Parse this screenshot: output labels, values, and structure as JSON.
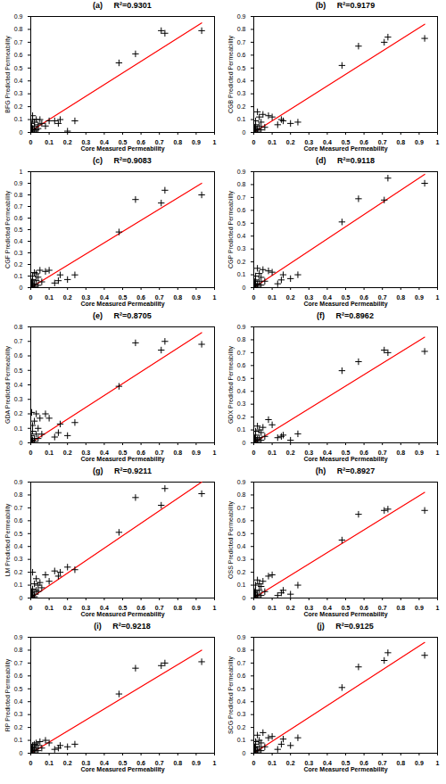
{
  "chart_data": [
    {
      "type": "scatter",
      "title": "(a)     R²=0.9301",
      "xlabel": "Core Measured Permeability",
      "ylabel": "BFG Predicted Permeability",
      "color": "#000000",
      "marker": "plus",
      "xlim": [
        0,
        1
      ],
      "xticks": [
        0,
        0.1,
        0.2,
        0.3,
        0.4,
        0.5,
        0.6,
        0.7,
        0.8,
        0.9,
        1
      ],
      "ylim": [
        0,
        0.9
      ],
      "yticks": [
        0,
        0.1,
        0.2,
        0.3,
        0.4,
        0.5,
        0.6,
        0.7,
        0.8,
        0.9
      ],
      "x": [
        0.93,
        0.73,
        0.71,
        0.57,
        0.48,
        0.24,
        0.2,
        0.16,
        0.15,
        0.13,
        0.1,
        0.08,
        0.06,
        0.05,
        0.04,
        0.04,
        0.03,
        0.03,
        0.02,
        0.02,
        0.02,
        0.01,
        0.01,
        0.01,
        0.01,
        0.005,
        0.005,
        0.003,
        0.002,
        0.001
      ],
      "y": [
        0.79,
        0.77,
        0.79,
        0.61,
        0.54,
        0.09,
        0.01,
        0.1,
        0.07,
        0.09,
        0.09,
        0.05,
        0.07,
        0.1,
        0.03,
        0.06,
        0.1,
        0.02,
        0.05,
        0.08,
        0.01,
        0.1,
        0.03,
        0.02,
        0.13,
        0.04,
        0.01,
        0.07,
        0.02,
        0
      ],
      "line": {
        "x": [
          0,
          0.93
        ],
        "y": [
          0.01,
          0.85
        ],
        "color": "#ff0000"
      }
    },
    {
      "type": "scatter",
      "title": "(b)     R²=0.9179",
      "xlabel": "Core Measured Permeability",
      "ylabel": "CGB Predicted Permeability",
      "color": "#000000",
      "marker": "plus",
      "xlim": [
        0,
        1
      ],
      "xticks": [
        0,
        0.1,
        0.2,
        0.3,
        0.4,
        0.5,
        0.6,
        0.7,
        0.8,
        0.9,
        1
      ],
      "ylim": [
        0,
        0.9
      ],
      "yticks": [
        0,
        0.1,
        0.2,
        0.3,
        0.4,
        0.5,
        0.6,
        0.7,
        0.8,
        0.9
      ],
      "x": [
        0.93,
        0.73,
        0.71,
        0.57,
        0.48,
        0.24,
        0.2,
        0.16,
        0.15,
        0.13,
        0.1,
        0.08,
        0.06,
        0.05,
        0.04,
        0.04,
        0.03,
        0.03,
        0.02,
        0.02,
        0.02,
        0.01,
        0.01,
        0.01,
        0.01,
        0.005,
        0.005,
        0.003,
        0.002,
        0.001
      ],
      "y": [
        0.73,
        0.74,
        0.7,
        0.67,
        0.52,
        0.08,
        0.07,
        0.09,
        0.1,
        0.06,
        0.12,
        0.13,
        0.04,
        0.14,
        0.02,
        0.08,
        0.05,
        0.12,
        0.03,
        0.16,
        0.01,
        0.06,
        0.02,
        0.09,
        0,
        0.03,
        0.01,
        0.04,
        0.02,
        0
      ],
      "line": {
        "x": [
          0,
          0.93
        ],
        "y": [
          0,
          0.84
        ],
        "color": "#ff0000"
      }
    },
    {
      "type": "scatter",
      "title": "(c)     R²=0.9083",
      "xlabel": "Core Measured Permeability",
      "ylabel": "CGF Predicted Permeability",
      "color": "#000000",
      "marker": "plus",
      "xlim": [
        0,
        1
      ],
      "xticks": [
        0,
        0.1,
        0.2,
        0.3,
        0.4,
        0.5,
        0.6,
        0.7,
        0.8,
        0.9,
        1
      ],
      "ylim": [
        0,
        1
      ],
      "yticks": [
        0,
        0.1,
        0.2,
        0.3,
        0.4,
        0.5,
        0.6,
        0.7,
        0.8,
        0.9,
        1
      ],
      "x": [
        0.93,
        0.73,
        0.71,
        0.57,
        0.48,
        0.24,
        0.2,
        0.16,
        0.15,
        0.13,
        0.1,
        0.08,
        0.06,
        0.05,
        0.04,
        0.04,
        0.03,
        0.03,
        0.02,
        0.02,
        0.02,
        0.01,
        0.01,
        0.01,
        0.01,
        0.005,
        0.005,
        0.003,
        0.002,
        0.001
      ],
      "y": [
        0.8,
        0.84,
        0.73,
        0.76,
        0.48,
        0.11,
        0.07,
        0.11,
        0.06,
        0.04,
        0.15,
        0.14,
        0.05,
        0.15,
        0.02,
        0.09,
        0.06,
        0.12,
        0.03,
        0.13,
        0.01,
        0.07,
        0.02,
        0.1,
        0,
        0.04,
        0.01,
        0.05,
        0.02,
        0
      ],
      "line": {
        "x": [
          0,
          0.93
        ],
        "y": [
          0,
          0.9
        ],
        "color": "#ff0000"
      }
    },
    {
      "type": "scatter",
      "title": "(d)     R²=0.9118",
      "xlabel": "Core Measured Permeability",
      "ylabel": "CGP Predicted Permeability",
      "color": "#000000",
      "marker": "plus",
      "xlim": [
        0,
        1
      ],
      "xticks": [
        0,
        0.1,
        0.2,
        0.3,
        0.4,
        0.5,
        0.6,
        0.7,
        0.8,
        0.9,
        1
      ],
      "ylim": [
        0,
        0.9
      ],
      "yticks": [
        0,
        0.1,
        0.2,
        0.3,
        0.4,
        0.5,
        0.6,
        0.7,
        0.8,
        0.9
      ],
      "x": [
        0.93,
        0.73,
        0.71,
        0.57,
        0.48,
        0.24,
        0.2,
        0.16,
        0.15,
        0.13,
        0.1,
        0.08,
        0.06,
        0.05,
        0.04,
        0.04,
        0.03,
        0.03,
        0.02,
        0.02,
        0.02,
        0.01,
        0.01,
        0.01,
        0.01,
        0.005,
        0.005,
        0.003,
        0.002,
        0.001
      ],
      "y": [
        0.81,
        0.85,
        0.68,
        0.69,
        0.51,
        0.1,
        0.07,
        0.1,
        0.06,
        0.03,
        0.12,
        0.13,
        0.05,
        0.14,
        0.02,
        0.08,
        0.05,
        0.11,
        0.03,
        0.15,
        0.01,
        0.06,
        0.02,
        0.09,
        0,
        0.03,
        0.01,
        0.05,
        0.02,
        0
      ],
      "line": {
        "x": [
          0,
          0.93
        ],
        "y": [
          0,
          0.88
        ],
        "color": "#ff0000"
      }
    },
    {
      "type": "scatter",
      "title": "(e)     R²=0.8705",
      "xlabel": "Core Measured Permeability",
      "ylabel": "GDA Predicted Permeability",
      "color": "#000000",
      "marker": "plus",
      "xlim": [
        0,
        1
      ],
      "xticks": [
        0,
        0.1,
        0.2,
        0.3,
        0.4,
        0.5,
        0.6,
        0.7,
        0.8,
        0.9,
        1
      ],
      "ylim": [
        0,
        0.8
      ],
      "yticks": [
        0,
        0.1,
        0.2,
        0.3,
        0.4,
        0.5,
        0.6,
        0.7,
        0.8
      ],
      "x": [
        0.93,
        0.73,
        0.71,
        0.57,
        0.48,
        0.24,
        0.2,
        0.16,
        0.15,
        0.13,
        0.1,
        0.08,
        0.06,
        0.05,
        0.04,
        0.04,
        0.03,
        0.03,
        0.02,
        0.02,
        0.02,
        0.01,
        0.01,
        0.01,
        0.01,
        0.005,
        0.005,
        0.003,
        0.002,
        0.001
      ],
      "y": [
        0.68,
        0.7,
        0.64,
        0.69,
        0.39,
        0.14,
        0.05,
        0.13,
        0.07,
        0.04,
        0.17,
        0.2,
        0.06,
        0.17,
        0.03,
        0.1,
        0.06,
        0.2,
        0.03,
        0.15,
        0.01,
        0.08,
        0.02,
        0.12,
        0,
        0.21,
        0.01,
        0.05,
        0.02,
        0
      ],
      "line": {
        "x": [
          0,
          0.93
        ],
        "y": [
          0,
          0.76
        ],
        "color": "#ff0000"
      }
    },
    {
      "type": "scatter",
      "title": "(f)     R²=0.8962",
      "xlabel": "Core Measured Permeability",
      "ylabel": "GDX Predicted Permeability",
      "color": "#000000",
      "marker": "plus",
      "xlim": [
        0,
        1
      ],
      "xticks": [
        0,
        0.1,
        0.2,
        0.3,
        0.4,
        0.5,
        0.6,
        0.7,
        0.8,
        0.9,
        1
      ],
      "ylim": [
        0,
        0.9
      ],
      "yticks": [
        0,
        0.1,
        0.2,
        0.3,
        0.4,
        0.5,
        0.6,
        0.7,
        0.8,
        0.9
      ],
      "x": [
        0.93,
        0.73,
        0.71,
        0.57,
        0.48,
        0.24,
        0.2,
        0.16,
        0.15,
        0.13,
        0.1,
        0.08,
        0.06,
        0.05,
        0.04,
        0.04,
        0.03,
        0.03,
        0.02,
        0.02,
        0.02,
        0.01,
        0.01,
        0.01,
        0.01,
        0.005,
        0.005,
        0.003,
        0.002,
        0.001
      ],
      "y": [
        0.71,
        0.7,
        0.72,
        0.63,
        0.56,
        0.07,
        0.02,
        0.06,
        0.05,
        0.04,
        0.14,
        0.18,
        0.05,
        0.12,
        0.02,
        0.08,
        0.04,
        0.1,
        0.03,
        0.13,
        0.01,
        0.06,
        0.02,
        0.09,
        0,
        0.03,
        0.01,
        0.04,
        0.02,
        0
      ],
      "line": {
        "x": [
          0,
          0.93
        ],
        "y": [
          0,
          0.82
        ],
        "color": "#ff0000"
      }
    },
    {
      "type": "scatter",
      "title": "(g)     R²=0.9211",
      "xlabel": "Core Measured Permeability",
      "ylabel": "LM Predicted Permeability",
      "color": "#000000",
      "marker": "plus",
      "xlim": [
        0,
        1
      ],
      "xticks": [
        0,
        0.1,
        0.2,
        0.3,
        0.4,
        0.5,
        0.6,
        0.7,
        0.8,
        0.9,
        1
      ],
      "ylim": [
        0,
        0.9
      ],
      "yticks": [
        0,
        0.1,
        0.2,
        0.3,
        0.4,
        0.5,
        0.6,
        0.7,
        0.8,
        0.9
      ],
      "x": [
        0.93,
        0.73,
        0.71,
        0.57,
        0.48,
        0.24,
        0.2,
        0.16,
        0.15,
        0.13,
        0.1,
        0.08,
        0.06,
        0.05,
        0.04,
        0.04,
        0.03,
        0.03,
        0.02,
        0.02,
        0.02,
        0.01,
        0.01,
        0.01,
        0.01,
        0.005,
        0.005,
        0.003,
        0.002,
        0.001
      ],
      "y": [
        0.81,
        0.85,
        0.72,
        0.78,
        0.51,
        0.22,
        0.24,
        0.2,
        0.17,
        0.21,
        0.13,
        0.18,
        0.08,
        0.12,
        0.05,
        0.1,
        0.06,
        0.15,
        0.03,
        0.11,
        0.01,
        0.07,
        0.02,
        0.2,
        0,
        0.04,
        0.01,
        0.05,
        0.02,
        0
      ],
      "line": {
        "x": [
          0,
          0.93
        ],
        "y": [
          0,
          0.9
        ],
        "color": "#ff0000"
      }
    },
    {
      "type": "scatter",
      "title": "(h)     R²=0.8927",
      "xlabel": "Core Measured Permeability",
      "ylabel": "OSS Predicted Permeability",
      "color": "#000000",
      "marker": "plus",
      "xlim": [
        0,
        1
      ],
      "xticks": [
        0,
        0.1,
        0.2,
        0.3,
        0.4,
        0.5,
        0.6,
        0.7,
        0.8,
        0.9,
        1
      ],
      "ylim": [
        0,
        0.9
      ],
      "yticks": [
        0,
        0.1,
        0.2,
        0.3,
        0.4,
        0.5,
        0.6,
        0.7,
        0.8,
        0.9
      ],
      "x": [
        0.93,
        0.73,
        0.71,
        0.57,
        0.48,
        0.24,
        0.2,
        0.16,
        0.15,
        0.13,
        0.1,
        0.08,
        0.06,
        0.05,
        0.04,
        0.04,
        0.03,
        0.03,
        0.02,
        0.02,
        0.02,
        0.01,
        0.01,
        0.01,
        0.01,
        0.005,
        0.005,
        0.003,
        0.002,
        0.001
      ],
      "y": [
        0.68,
        0.69,
        0.68,
        0.65,
        0.45,
        0.1,
        0.03,
        0.06,
        0.04,
        0.02,
        0.18,
        0.17,
        0.05,
        0.13,
        0.02,
        0.09,
        0.06,
        0.11,
        0.03,
        0.14,
        0.01,
        0.06,
        0.02,
        0.1,
        0,
        0.04,
        0.01,
        0.05,
        0.02,
        0
      ],
      "line": {
        "x": [
          0,
          0.93
        ],
        "y": [
          0,
          0.82
        ],
        "color": "#ff0000"
      }
    },
    {
      "type": "scatter",
      "title": "(i)     R²=0.9218",
      "xlabel": "Core Measured Permeability",
      "ylabel": "RP Predicted Permeability",
      "color": "#000000",
      "marker": "plus",
      "xlim": [
        0,
        1
      ],
      "xticks": [
        0,
        0.1,
        0.2,
        0.3,
        0.4,
        0.5,
        0.6,
        0.7,
        0.8,
        0.9,
        1
      ],
      "ylim": [
        0,
        0.9
      ],
      "yticks": [
        0,
        0.1,
        0.2,
        0.3,
        0.4,
        0.5,
        0.6,
        0.7,
        0.8,
        0.9
      ],
      "x": [
        0.93,
        0.73,
        0.71,
        0.57,
        0.48,
        0.24,
        0.2,
        0.16,
        0.15,
        0.13,
        0.1,
        0.08,
        0.06,
        0.05,
        0.04,
        0.04,
        0.03,
        0.03,
        0.02,
        0.02,
        0.02,
        0.01,
        0.01,
        0.01,
        0.01,
        0.005,
        0.005,
        0.003,
        0.002,
        0.001
      ],
      "y": [
        0.71,
        0.7,
        0.68,
        0.66,
        0.46,
        0.07,
        0.05,
        0.06,
        0.04,
        0.03,
        0.08,
        0.1,
        0.04,
        0.09,
        0.02,
        0.06,
        0.04,
        0.08,
        0.03,
        0.07,
        0.01,
        0.05,
        0.02,
        0.06,
        0,
        0.03,
        0.01,
        0.04,
        0.02,
        0
      ],
      "line": {
        "x": [
          0,
          0.93
        ],
        "y": [
          0,
          0.8
        ],
        "color": "#ff0000"
      }
    },
    {
      "type": "scatter",
      "title": "(j)     R²=0.9125",
      "xlabel": "Core Measured Permeability",
      "ylabel": "SCG Predicted Permeability",
      "color": "#000000",
      "marker": "plus",
      "xlim": [
        0,
        1
      ],
      "xticks": [
        0,
        0.1,
        0.2,
        0.3,
        0.4,
        0.5,
        0.6,
        0.7,
        0.8,
        0.9,
        1
      ],
      "ylim": [
        0,
        0.9
      ],
      "yticks": [
        0,
        0.1,
        0.2,
        0.3,
        0.4,
        0.5,
        0.6,
        0.7,
        0.8,
        0.9
      ],
      "x": [
        0.93,
        0.73,
        0.71,
        0.57,
        0.48,
        0.24,
        0.2,
        0.16,
        0.15,
        0.13,
        0.1,
        0.08,
        0.06,
        0.05,
        0.04,
        0.04,
        0.03,
        0.03,
        0.02,
        0.02,
        0.02,
        0.01,
        0.01,
        0.01,
        0.01,
        0.005,
        0.005,
        0.003,
        0.002,
        0.001
      ],
      "y": [
        0.76,
        0.78,
        0.72,
        0.67,
        0.51,
        0.12,
        0.06,
        0.11,
        0.07,
        0.03,
        0.13,
        0.12,
        0.05,
        0.16,
        0.02,
        0.08,
        0.05,
        0.1,
        0.03,
        0.14,
        0.01,
        0.07,
        0.02,
        0.09,
        0,
        0.04,
        0.01,
        0.05,
        0.02,
        0
      ],
      "line": {
        "x": [
          0,
          0.93
        ],
        "y": [
          0,
          0.86
        ],
        "color": "#ff0000"
      }
    }
  ]
}
